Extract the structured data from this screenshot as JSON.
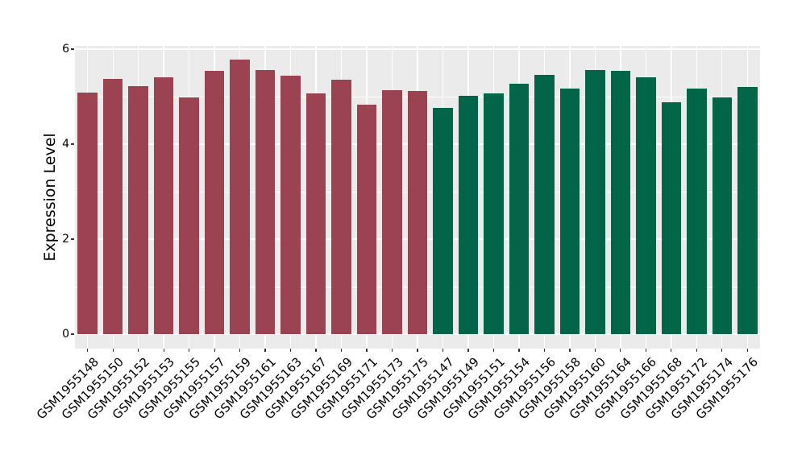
{
  "chart_data": {
    "type": "bar",
    "title": "",
    "xlabel": "",
    "ylabel": "Expression Level",
    "ylim": [
      -0.3,
      6.07
    ],
    "ytick_labels": [
      "0",
      "2",
      "4",
      "6"
    ],
    "ytick_values": [
      0,
      2,
      4,
      6
    ],
    "yminor_values": [
      1,
      3,
      5
    ],
    "grid": "white major and minor gridlines on gray panel",
    "legend_position": "none",
    "panel_background": "#EBEBEB",
    "grid_color": "#FFFFFF",
    "tick_color": "#333333",
    "text_color": "#000000",
    "group_colors": {
      "group1": "#9B4351",
      "group2": "#006647"
    },
    "bars": [
      {
        "label": "GSM1955148",
        "value": 5.08,
        "group": "group1"
      },
      {
        "label": "GSM1955150",
        "value": 5.37,
        "group": "group1"
      },
      {
        "label": "GSM1955152",
        "value": 5.22,
        "group": "group1"
      },
      {
        "label": "GSM1955153",
        "value": 5.41,
        "group": "group1"
      },
      {
        "label": "GSM1955155",
        "value": 4.98,
        "group": "group1"
      },
      {
        "label": "GSM1955157",
        "value": 5.54,
        "group": "group1"
      },
      {
        "label": "GSM1955159",
        "value": 5.78,
        "group": "group1"
      },
      {
        "label": "GSM1955161",
        "value": 5.56,
        "group": "group1"
      },
      {
        "label": "GSM1955163",
        "value": 5.44,
        "group": "group1"
      },
      {
        "label": "GSM1955167",
        "value": 5.06,
        "group": "group1"
      },
      {
        "label": "GSM1955169",
        "value": 5.36,
        "group": "group1"
      },
      {
        "label": "GSM1955171",
        "value": 4.83,
        "group": "group1"
      },
      {
        "label": "GSM1955173",
        "value": 5.14,
        "group": "group1"
      },
      {
        "label": "GSM1955175",
        "value": 5.12,
        "group": "group1"
      },
      {
        "label": "GSM1955147",
        "value": 4.77,
        "group": "group2"
      },
      {
        "label": "GSM1955149",
        "value": 5.02,
        "group": "group2"
      },
      {
        "label": "GSM1955151",
        "value": 5.07,
        "group": "group2"
      },
      {
        "label": "GSM1955154",
        "value": 5.27,
        "group": "group2"
      },
      {
        "label": "GSM1955156",
        "value": 5.45,
        "group": "group2"
      },
      {
        "label": "GSM1955158",
        "value": 5.17,
        "group": "group2"
      },
      {
        "label": "GSM1955160",
        "value": 5.56,
        "group": "group2"
      },
      {
        "label": "GSM1955164",
        "value": 5.54,
        "group": "group2"
      },
      {
        "label": "GSM1955166",
        "value": 5.41,
        "group": "group2"
      },
      {
        "label": "GSM1955168",
        "value": 4.88,
        "group": "group2"
      },
      {
        "label": "GSM1955172",
        "value": 5.17,
        "group": "group2"
      },
      {
        "label": "GSM1955174",
        "value": 4.98,
        "group": "group2"
      },
      {
        "label": "GSM1955176",
        "value": 5.2,
        "group": "group2"
      }
    ]
  }
}
